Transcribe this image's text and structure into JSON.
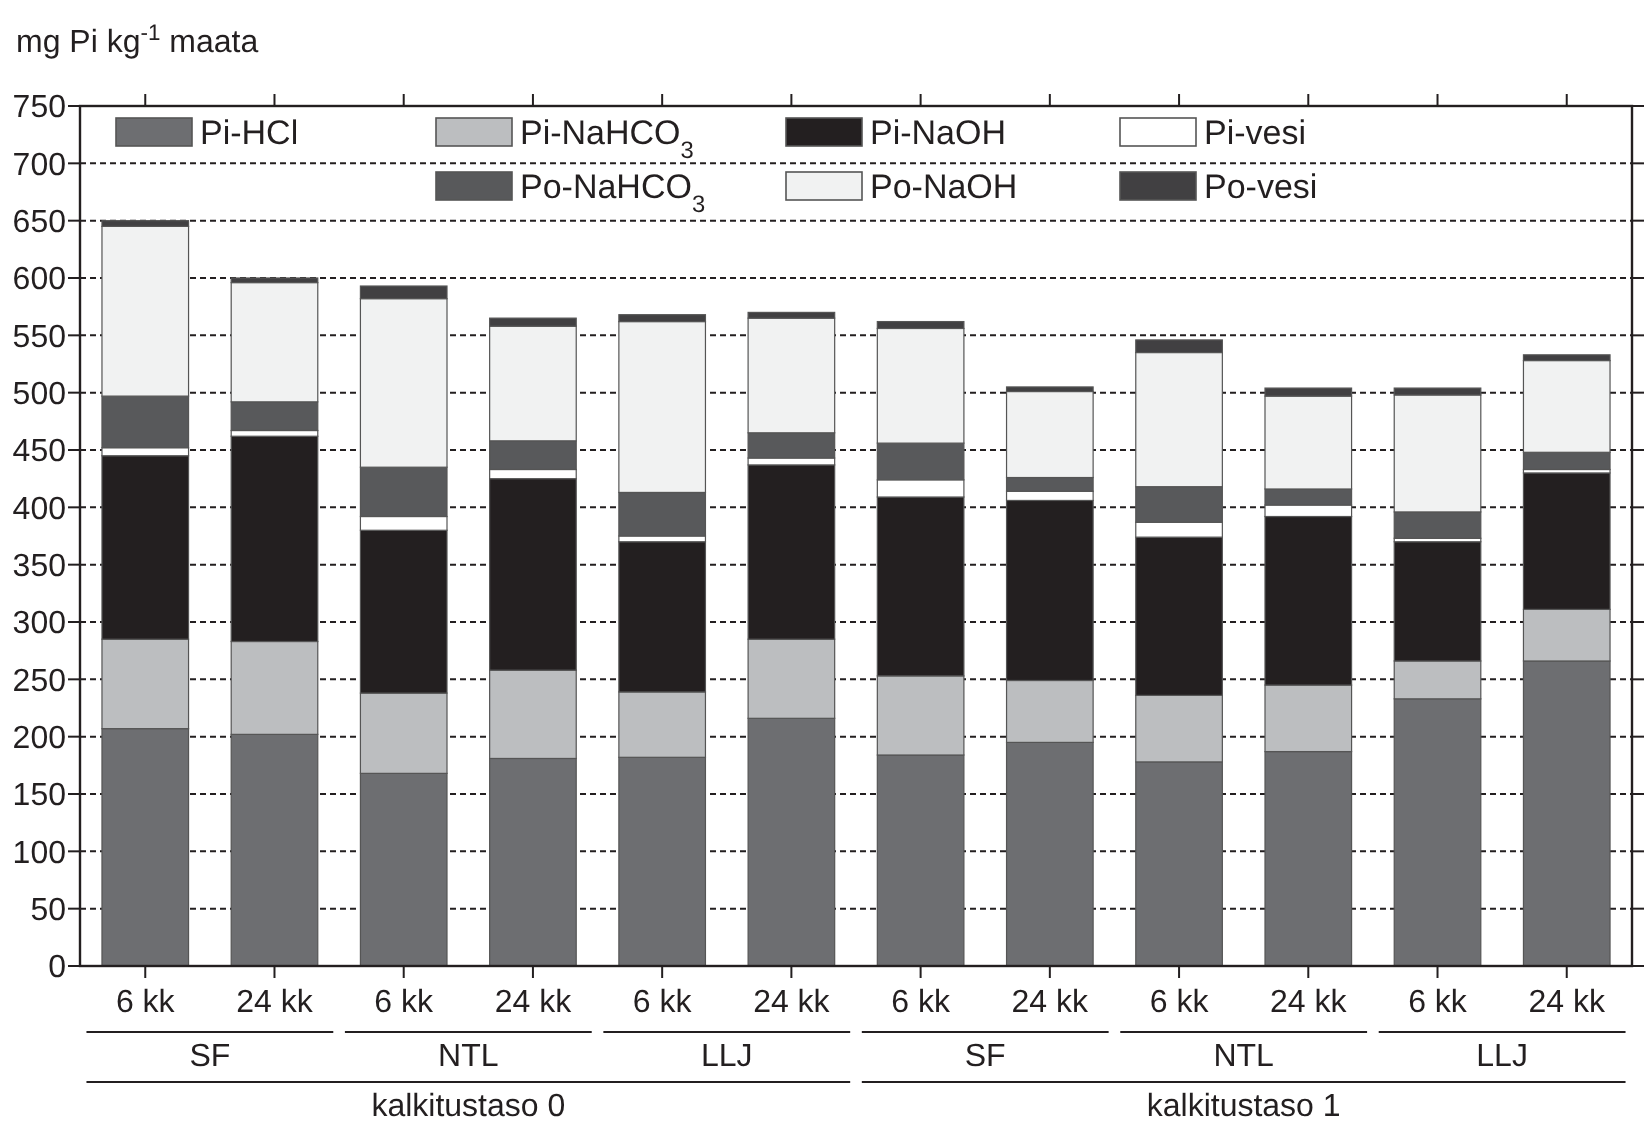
{
  "chart_data": {
    "type": "bar",
    "stacked": true,
    "ylabel": "mg Pi kg$^{-1}$ maata",
    "categories": [
      "6 kk",
      "24 kk",
      "6 kk",
      "24 kk",
      "6 kk",
      "24 kk",
      "6 kk",
      "24 kk",
      "6 kk",
      "24 kk",
      "6 kk",
      "24 kk"
    ],
    "series": [
      {
        "name": "Pi-HCl",
        "color": "#6d6e71",
        "values": [
          207,
          202,
          168,
          181,
          182,
          216,
          184,
          195,
          178,
          187,
          233,
          266
        ]
      },
      {
        "name": "Pi-NaHCO$_{3}$",
        "color": "#bcbec0",
        "values": [
          78,
          81,
          70,
          77,
          57,
          69,
          69,
          54,
          58,
          58,
          33,
          45
        ]
      },
      {
        "name": "Pi-NaOH",
        "color": "#231f20",
        "values": [
          160,
          179,
          142,
          167,
          131,
          152,
          156,
          157,
          138,
          147,
          104,
          119
        ]
      },
      {
        "name": "Pi-vesi",
        "color": "#ffffff",
        "values": [
          7,
          5,
          12,
          8,
          5,
          6,
          15,
          8,
          13,
          10,
          3,
          3
        ]
      },
      {
        "name": "Po-NaHCO$_{3}$",
        "color": "#58595b",
        "values": [
          45,
          25,
          43,
          25,
          38,
          22,
          32,
          12,
          31,
          14,
          23,
          15
        ]
      },
      {
        "name": "Po-NaOH",
        "color": "#f1f2f2",
        "values": [
          148,
          104,
          147,
          100,
          149,
          100,
          100,
          75,
          117,
          81,
          102,
          80
        ]
      },
      {
        "name": "Po-vesi",
        "color": "#414042",
        "values": [
          5,
          4,
          11,
          7,
          6,
          5,
          6,
          4,
          11,
          7,
          6,
          5
        ]
      }
    ],
    "ylim": [
      0,
      750
    ],
    "yticks": [
      0,
      50,
      100,
      150,
      200,
      250,
      300,
      350,
      400,
      450,
      500,
      550,
      600,
      650,
      700,
      750
    ],
    "grid": "y",
    "legend": "top",
    "annotations": [
      "SF",
      "NTL",
      "LLJ",
      "SF",
      "NTL",
      "LLJ",
      "kalkitustaso 0",
      "kalkitustaso 1"
    ]
  }
}
